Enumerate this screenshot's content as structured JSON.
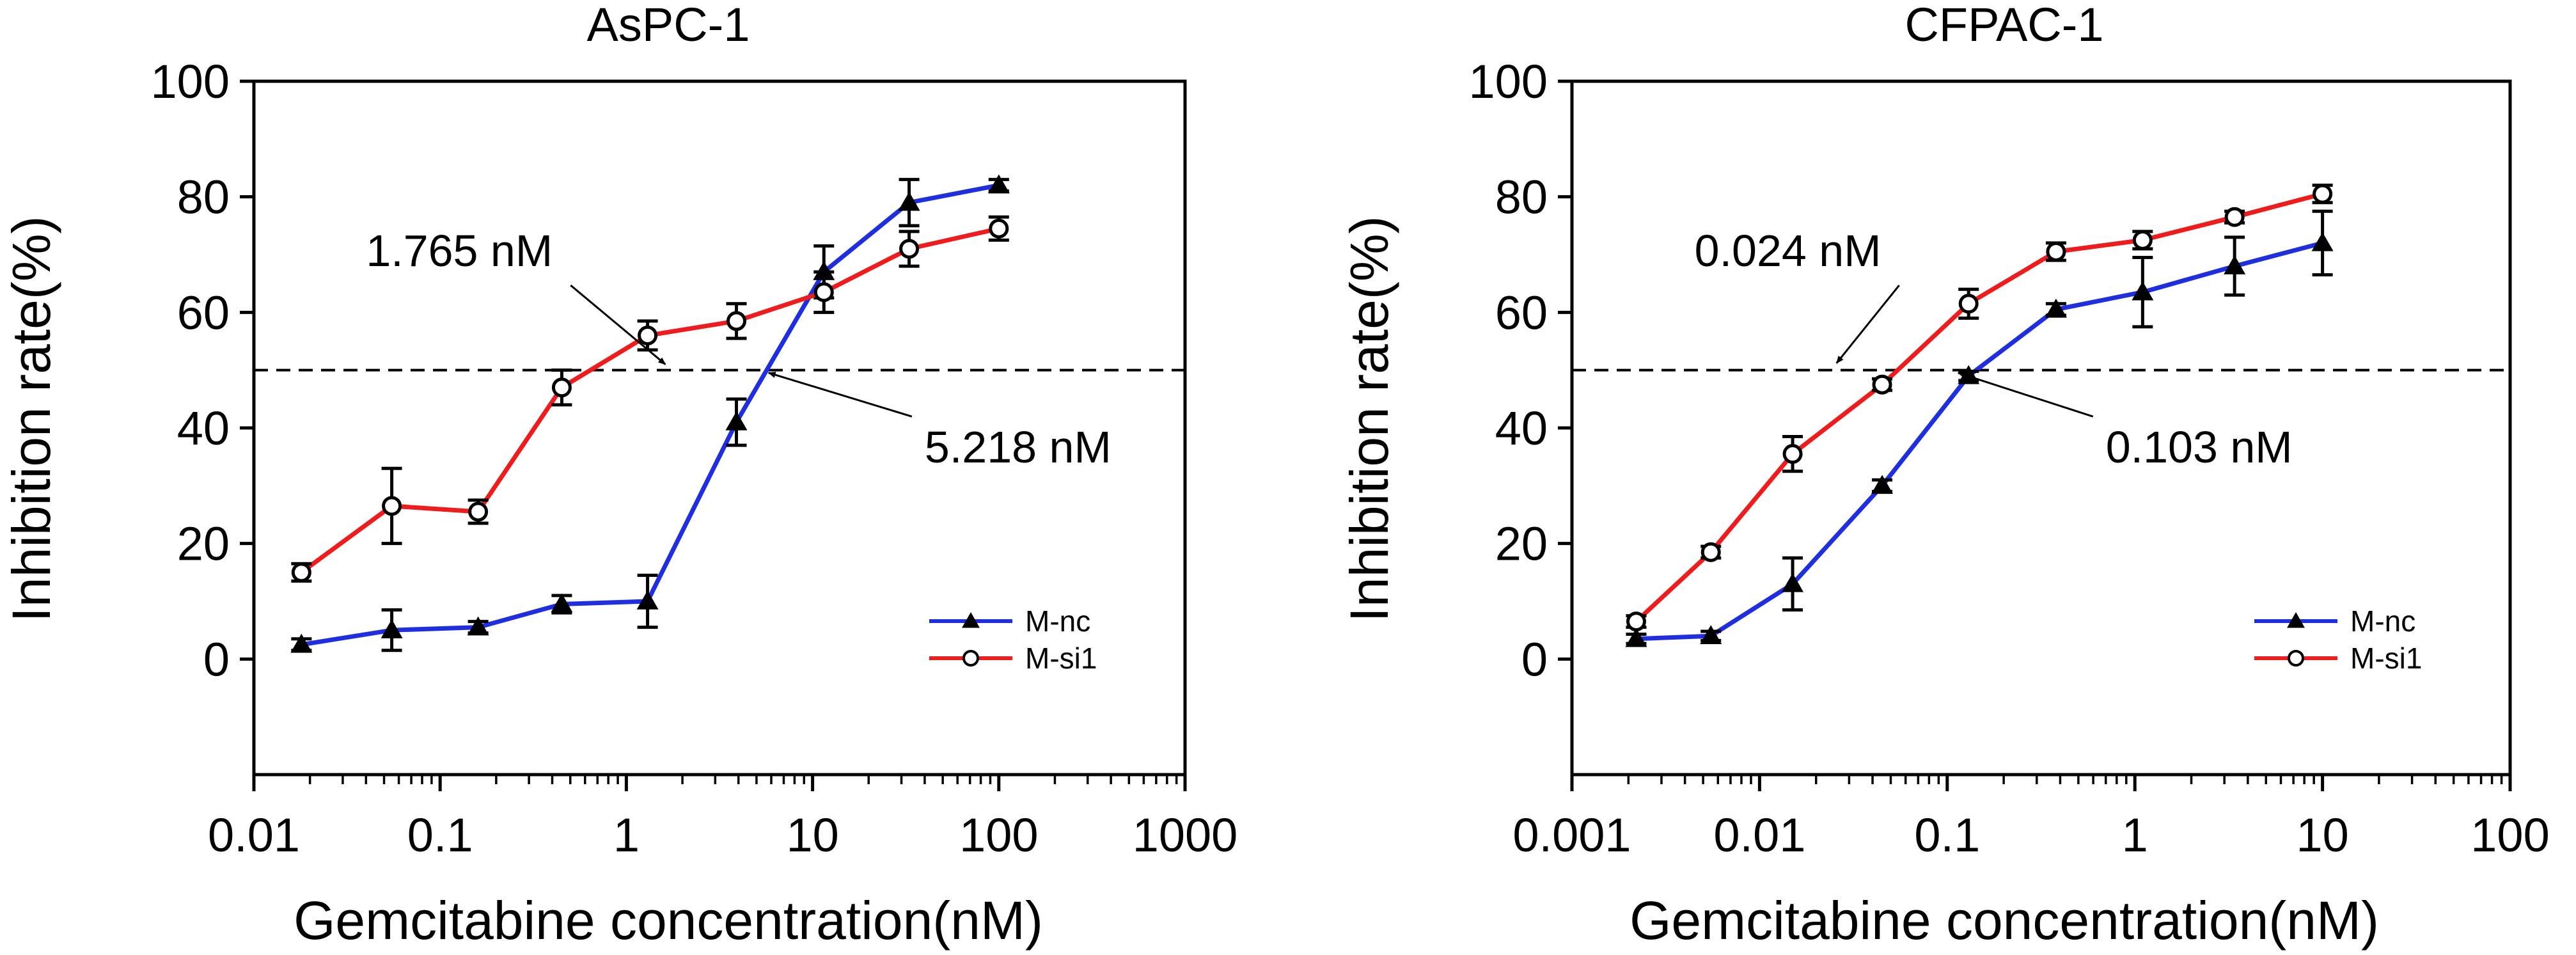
{
  "chart_data": [
    {
      "type": "line",
      "title": "AsPC-1",
      "xlabel": "Gemcitabine concentration(nM)",
      "ylabel": "Inhibition rate(%)",
      "xscale": "log",
      "xlim": [
        0.01,
        1000
      ],
      "ylim": [
        -20,
        100
      ],
      "yticks": [
        0,
        20,
        40,
        60,
        80,
        100
      ],
      "ytick_labels": [
        "0",
        "20",
        "40",
        "60",
        "80",
        "100"
      ],
      "xticks": [
        0.01,
        0.1,
        1,
        10,
        100,
        1000
      ],
      "xtick_labels": [
        "0.01",
        "0.1",
        "1",
        "10",
        "100",
        "1000"
      ],
      "legend_position": "bottom-right",
      "reference_line": {
        "y": 50,
        "style": "dashed"
      },
      "series": [
        {
          "name": "M-nc",
          "color": "#1f2fe0",
          "marker": "filled-triangle",
          "x": [
            0.018,
            0.055,
            0.16,
            0.45,
            1.3,
            3.9,
            11.5,
            33,
            100
          ],
          "values": [
            2.5,
            5,
            5.5,
            9.5,
            10,
            41,
            67,
            79,
            82
          ],
          "errors": [
            1,
            3.5,
            1,
            1.5,
            4.5,
            4,
            4.5,
            4,
            1
          ]
        },
        {
          "name": "M-si1",
          "color": "#ee1c1c",
          "marker": "open-circle",
          "x": [
            0.018,
            0.055,
            0.16,
            0.45,
            1.3,
            3.9,
            11.5,
            33,
            100
          ],
          "values": [
            15,
            26.5,
            25.5,
            47,
            56,
            58.5,
            63.5,
            71,
            74.5
          ],
          "errors": [
            1.5,
            6.5,
            2,
            3,
            2.5,
            3,
            3.5,
            3,
            2
          ]
        }
      ],
      "annotations": [
        {
          "text": "1.765 nM",
          "x": 1.765,
          "y": 50,
          "label_x": 0.04,
          "label_y": 68
        },
        {
          "text": "5.218 nM",
          "x": 5.218,
          "y": 50,
          "label_x": 40,
          "label_y": 34
        }
      ]
    },
    {
      "type": "line",
      "title": "CFPAC-1",
      "xlabel": "Gemcitabine concentration(nM)",
      "ylabel": "Inhibition rate(%)",
      "xscale": "log",
      "xlim": [
        0.001,
        100
      ],
      "ylim": [
        -20,
        100
      ],
      "yticks": [
        0,
        20,
        40,
        60,
        80,
        100
      ],
      "ytick_labels": [
        "0",
        "20",
        "40",
        "60",
        "80",
        "100"
      ],
      "xticks": [
        0.001,
        0.01,
        0.1,
        1,
        10,
        100
      ],
      "xtick_labels": [
        "0.001",
        "0.01",
        "0.1",
        "1",
        "10",
        "100"
      ],
      "legend_position": "bottom-right",
      "reference_line": {
        "y": 50,
        "style": "dashed"
      },
      "series": [
        {
          "name": "M-nc",
          "color": "#1f2fe0",
          "marker": "filled-triangle",
          "x": [
            0.0022,
            0.0055,
            0.015,
            0.045,
            0.13,
            0.38,
            1.1,
            3.4,
            10
          ],
          "values": [
            3.5,
            4,
            13,
            30,
            49,
            60.5,
            63.5,
            68,
            72
          ],
          "errors": [
            0.8,
            0.8,
            4.5,
            1,
            0.8,
            1,
            6,
            5,
            5.5
          ]
        },
        {
          "name": "M-si1",
          "color": "#ee1c1c",
          "marker": "open-circle",
          "x": [
            0.0022,
            0.0055,
            0.015,
            0.045,
            0.13,
            0.38,
            1.1,
            3.4,
            10
          ],
          "values": [
            6.5,
            18.5,
            35.5,
            47.5,
            61.5,
            70.5,
            72.5,
            76.5,
            80.5
          ],
          "errors": [
            1,
            1,
            3,
            1,
            2.5,
            1.5,
            1.5,
            1,
            1.5
          ]
        }
      ],
      "annotations": [
        {
          "text": "0.024 nM",
          "x": 0.024,
          "y": 50,
          "label_x": 0.0045,
          "label_y": 68
        },
        {
          "text": "0.103 nM",
          "x": 0.103,
          "y": 50,
          "label_x": 0.7,
          "label_y": 34
        }
      ]
    }
  ]
}
